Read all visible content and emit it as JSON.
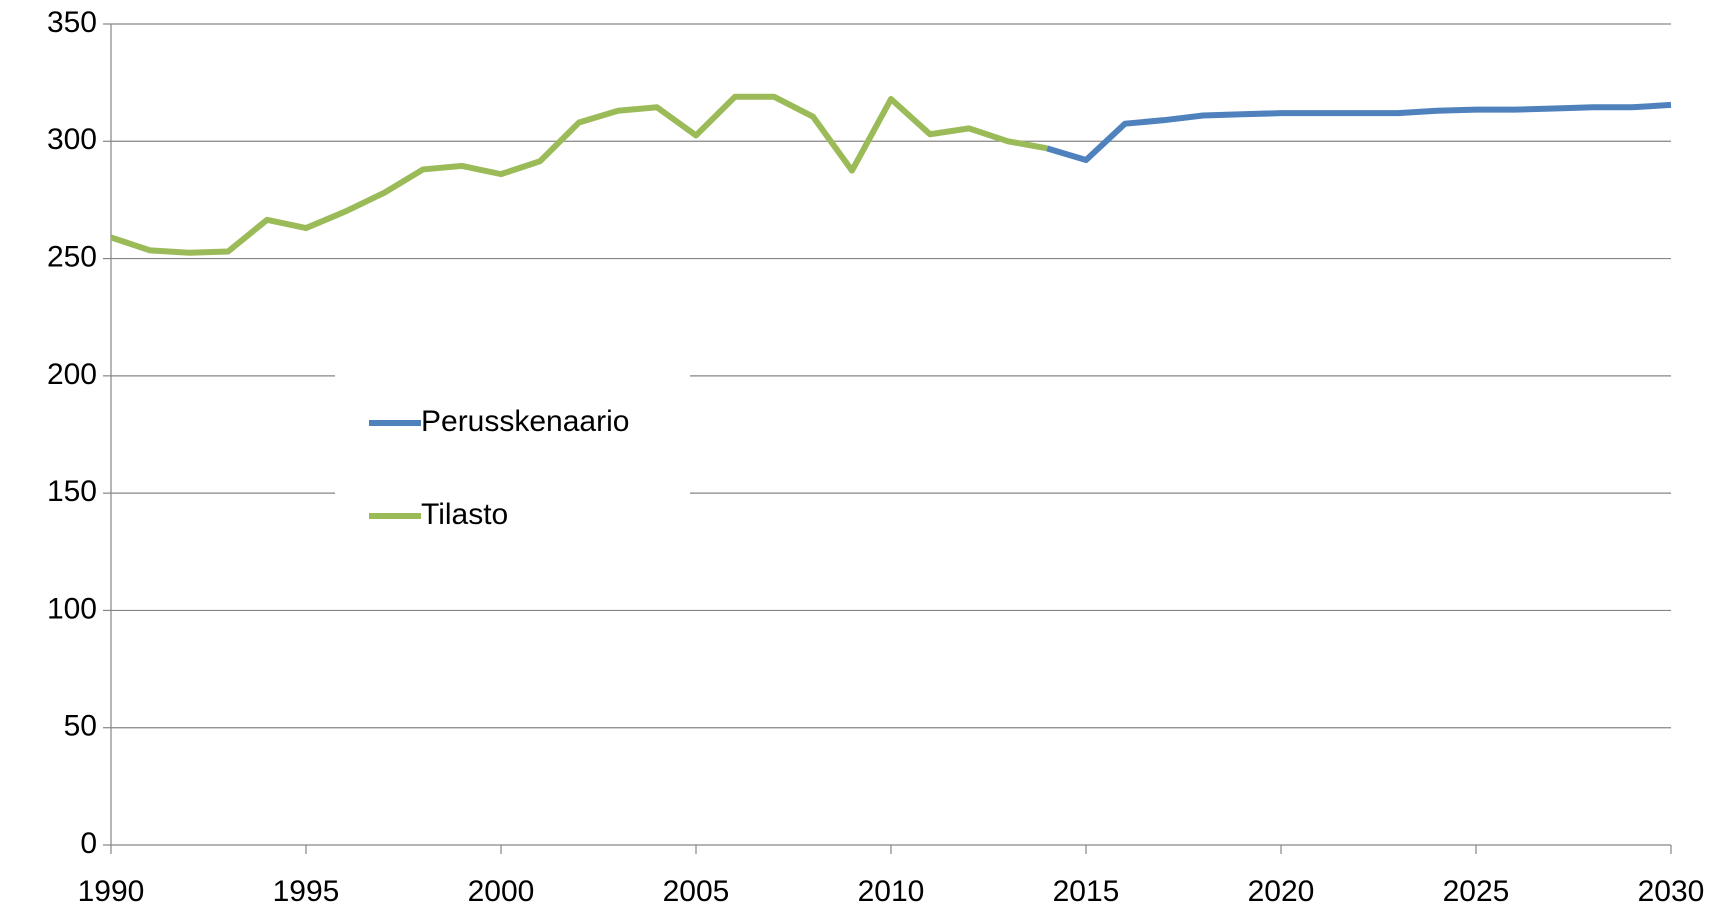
{
  "chart_data": {
    "type": "line",
    "x": [
      1990,
      1991,
      1992,
      1993,
      1994,
      1995,
      1996,
      1997,
      1998,
      1999,
      2000,
      2001,
      2002,
      2003,
      2004,
      2005,
      2006,
      2007,
      2008,
      2009,
      2010,
      2011,
      2012,
      2013,
      2014,
      2015,
      2016,
      2017,
      2018,
      2019,
      2020,
      2021,
      2022,
      2023,
      2024,
      2025,
      2026,
      2027,
      2028,
      2029,
      2030
    ],
    "series": [
      {
        "name": "Perusskenaario",
        "color": "#4f81bd",
        "values": [
          null,
          null,
          null,
          null,
          null,
          null,
          null,
          null,
          null,
          null,
          null,
          null,
          null,
          null,
          null,
          null,
          null,
          null,
          null,
          null,
          null,
          null,
          null,
          null,
          297,
          292,
          307.5,
          309,
          311,
          311.5,
          312,
          312,
          312,
          312,
          313,
          313.5,
          313.5,
          314,
          314.5,
          314.5,
          315.5
        ]
      },
      {
        "name": "Tilasto",
        "color": "#9bbb59",
        "values": [
          259,
          253.5,
          252.5,
          253,
          266.5,
          263,
          270,
          278,
          288,
          289.5,
          286,
          291.5,
          308,
          313,
          314.5,
          302.5,
          319,
          319,
          310.5,
          287.5,
          318,
          303,
          305.5,
          300,
          297,
          null,
          null,
          null,
          null,
          null,
          null,
          null,
          null,
          null,
          null,
          null,
          null,
          null,
          null,
          null,
          null
        ]
      }
    ],
    "xlim": [
      1990,
      2030
    ],
    "xticks": [
      1990,
      1995,
      2000,
      2005,
      2010,
      2015,
      2020,
      2025,
      2030
    ],
    "ylim": [
      0,
      350
    ],
    "yticks": [
      0,
      50,
      100,
      150,
      200,
      250,
      300,
      350
    ],
    "grid": true,
    "legend": "left"
  }
}
